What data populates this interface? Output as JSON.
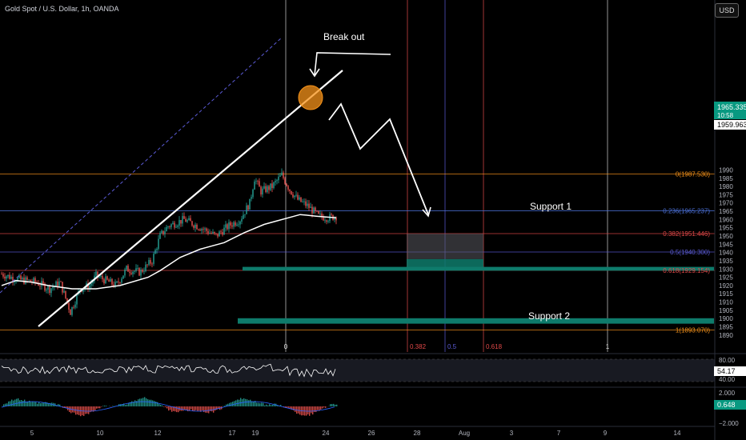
{
  "header": {
    "title": "Gold Spot / U.S. Dollar, 1h, OANDA",
    "currency_button": "USD"
  },
  "price_tags": {
    "current_price": "1965.335",
    "countdown": "10:58",
    "second_price": "1959.963",
    "rsi_value": "54.17",
    "macd_value": "0.648"
  },
  "annotations": {
    "breakout": "Break out",
    "support1": "Support 1",
    "support2": "Support 2"
  },
  "chart_data": {
    "type": "candlestick",
    "price_axis": {
      "ylim": [
        1885,
        1995
      ],
      "ticks": [
        1890,
        1895,
        1900,
        1905,
        1910,
        1915,
        1920,
        1925,
        1930,
        1935,
        1940,
        1945,
        1950,
        1955,
        1960,
        1965,
        1970,
        1975,
        1980,
        1985,
        1990
      ]
    },
    "time_axis": {
      "ticks": [
        "5",
        "10",
        "12",
        "17",
        "19",
        "24",
        "26",
        "28",
        "Aug",
        "3",
        "7",
        "9",
        "14"
      ]
    },
    "fib_price": {
      "levels": [
        {
          "label": "0(1987.530)",
          "value": 1987.53,
          "color": "#f7931a"
        },
        {
          "label": "0.236(1965.237)",
          "value": 1965.237,
          "color": "#4a6fd6"
        },
        {
          "label": "0.382(1951.446)",
          "value": 1951.446,
          "color": "#e04848"
        },
        {
          "label": "0.5(1940.300)",
          "value": 1940.3,
          "color": "#5b5bd6"
        },
        {
          "label": "0.618(1929.154)",
          "value": 1929.154,
          "color": "#e04848"
        },
        {
          "label": "1(1893.070)",
          "value": 1893.07,
          "color": "#f7931a"
        }
      ]
    },
    "fib_time": {
      "labels": [
        "0",
        "0.382",
        "0.5",
        "0.618",
        "1"
      ]
    },
    "rsi": {
      "levels": [
        "80.00",
        "40.00"
      ]
    },
    "macd": {
      "levels": [
        "2.000",
        "−2.000"
      ]
    },
    "colors": {
      "up": "#26a69a",
      "down": "#ef5350",
      "support_zone": "#0e7b6b",
      "ma": "#ffffff"
    }
  }
}
